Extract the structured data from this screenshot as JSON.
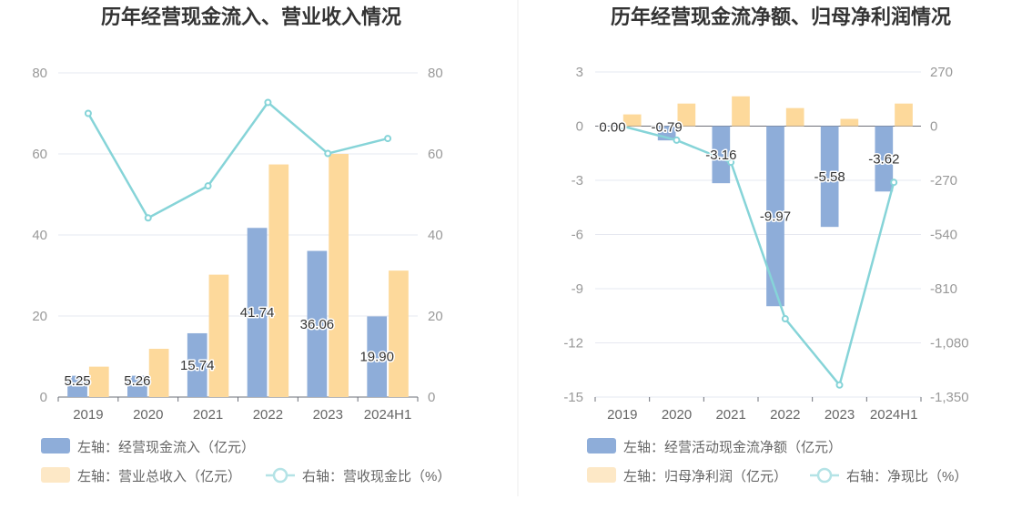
{
  "chart_data": [
    {
      "type": "bar",
      "title": "历年经营现金流入、营业收入情况",
      "categories": [
        "2019",
        "2020",
        "2021",
        "2022",
        "2023",
        "2024H1"
      ],
      "left_axis": {
        "ylim": [
          0,
          80
        ],
        "ticks": [
          "0",
          "20",
          "40",
          "60",
          "80"
        ]
      },
      "right_axis": {
        "ylim": [
          0,
          80
        ],
        "ticks": [
          "0",
          "20",
          "40",
          "60",
          "80"
        ]
      },
      "series": [
        {
          "name": "左轴：经营现金流入（亿元）",
          "kind": "bar",
          "axis": "left",
          "color": "#8eadd9",
          "values": [
            5.25,
            5.26,
            15.74,
            41.74,
            36.06,
            19.9
          ],
          "labels": [
            "5.25",
            "5.26",
            "15.74",
            "41.74",
            "36.06",
            "19.90"
          ]
        },
        {
          "name": "左轴：营业总收入（亿元）",
          "kind": "bar",
          "axis": "left",
          "color": "#fdd99b",
          "values": [
            7.5,
            11.9,
            30.2,
            57.4,
            60.0,
            31.2
          ]
        },
        {
          "name": "右轴：营收现金比（%）",
          "kind": "line",
          "axis": "right",
          "color": "#86d4d8",
          "values": [
            70.0,
            44.2,
            52.1,
            72.7,
            60.1,
            63.8
          ]
        }
      ],
      "grid": true,
      "legend_position": "bottom-left"
    },
    {
      "type": "bar",
      "title": "历年经营现金流净额、归母净利润情况",
      "categories": [
        "2019",
        "2020",
        "2021",
        "2022",
        "2023",
        "2024H1"
      ],
      "left_axis": {
        "ylim": [
          -15,
          3
        ],
        "ticks": [
          "-15",
          "-12",
          "-9",
          "-6",
          "-3",
          "0",
          "3"
        ]
      },
      "right_axis": {
        "ylim": [
          -1350,
          270
        ],
        "ticks": [
          "-1,350",
          "-1,080",
          "-810",
          "-540",
          "-270",
          "0",
          "270"
        ]
      },
      "series": [
        {
          "name": "左轴：经营活动现金流净额（亿元）",
          "kind": "bar",
          "axis": "left",
          "color": "#8eadd9",
          "values": [
            0.0,
            -0.79,
            -3.16,
            -9.97,
            -5.58,
            -3.62
          ],
          "labels": [
            "0.00",
            "-0.79",
            "-3.16",
            "-9.97",
            "-5.58",
            "-3.62"
          ]
        },
        {
          "name": "左轴：归母净利润（亿元）",
          "kind": "bar",
          "axis": "left",
          "color": "#fdd99b",
          "values": [
            0.65,
            1.25,
            1.65,
            1.0,
            0.4,
            1.25
          ]
        },
        {
          "name": "右轴：净现比（%）",
          "kind": "line",
          "axis": "right",
          "color": "#86d4d8",
          "values": [
            0,
            -70,
            -180,
            -960,
            -1290,
            -280
          ]
        }
      ],
      "grid": true,
      "legend_position": "bottom-left"
    }
  ]
}
